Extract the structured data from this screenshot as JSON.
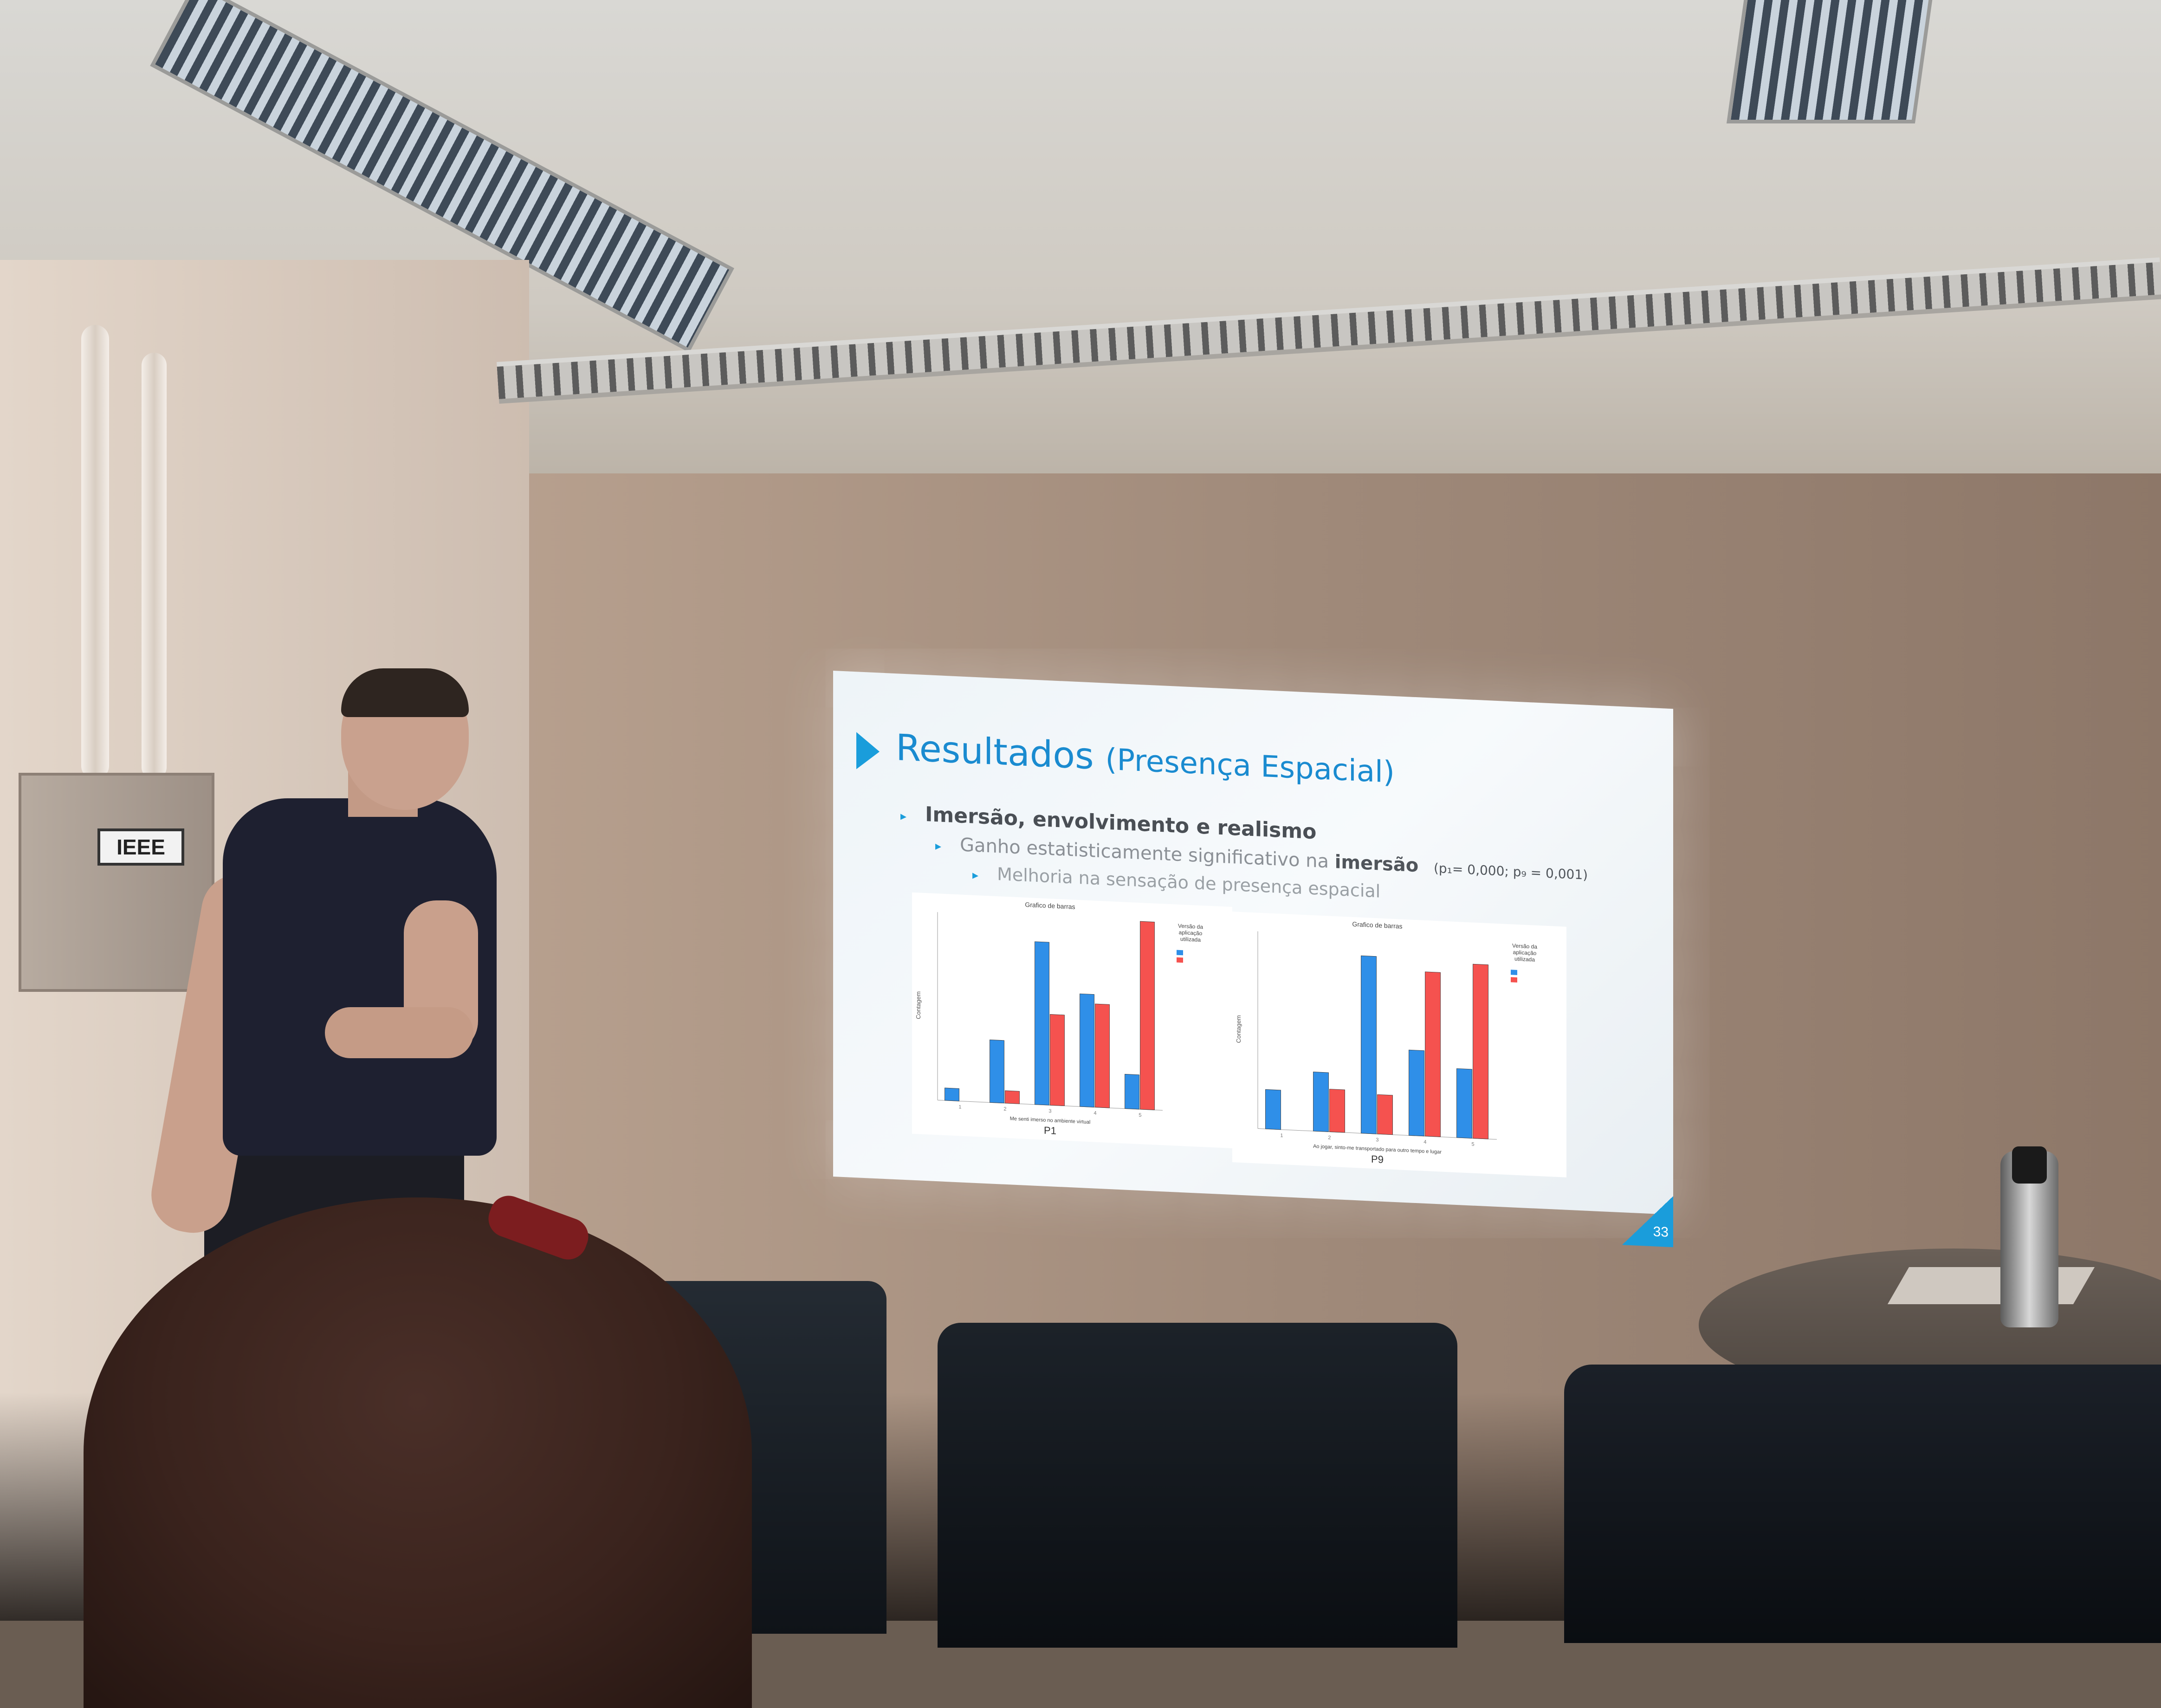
{
  "wall_sign": {
    "logo_text": "IEEE"
  },
  "slide": {
    "title_main": "Resultados",
    "title_sub": "(Presença Espacial)",
    "bullet_1": "Imersão, envolvimento e realismo",
    "bullet_2_prefix": "Ganho estatisticamente significativo na ",
    "bullet_2_bold": "imersão",
    "bullet_2_stats": "(p₁= 0,000;  p₉ = 0,001)",
    "bullet_3": "Melhoria na sensação de presença espacial",
    "slide_number": "33"
  },
  "chart_data": [
    {
      "type": "bar",
      "title": "Grafico de barras",
      "xlabel": "Me senti imerso no ambiente virtual",
      "ylabel": "Contagem",
      "caption": "P1",
      "categories": [
        "1",
        "2",
        "3",
        "4",
        "5"
      ],
      "ylim": [
        0,
        6
      ],
      "legend_title": "Versão da aplicação utilizada",
      "legend_placement": "top-right",
      "series": [
        {
          "color": "#2f8fe8",
          "values": [
            0.4,
            2.0,
            5.2,
            3.6,
            1.1
          ]
        },
        {
          "color": "#f5524f",
          "values": [
            0,
            0.4,
            2.9,
            3.3,
            6.0
          ]
        }
      ]
    },
    {
      "type": "bar",
      "title": "Grafico de barras",
      "xlabel": "Ao jogar, sinto-me transportado para outro tempo e lugar",
      "ylabel": "Contagem",
      "caption": "P9",
      "categories": [
        "1",
        "2",
        "3",
        "4",
        "5"
      ],
      "ylim": [
        0,
        6
      ],
      "legend_title": "Versão da aplicação utilizada",
      "legend_placement": "top-right",
      "series": [
        {
          "color": "#2f8fe8",
          "values": [
            1.2,
            1.8,
            5.4,
            2.6,
            2.1
          ]
        },
        {
          "color": "#f5524f",
          "values": [
            0,
            1.3,
            1.2,
            5.0,
            5.3
          ]
        }
      ]
    }
  ]
}
